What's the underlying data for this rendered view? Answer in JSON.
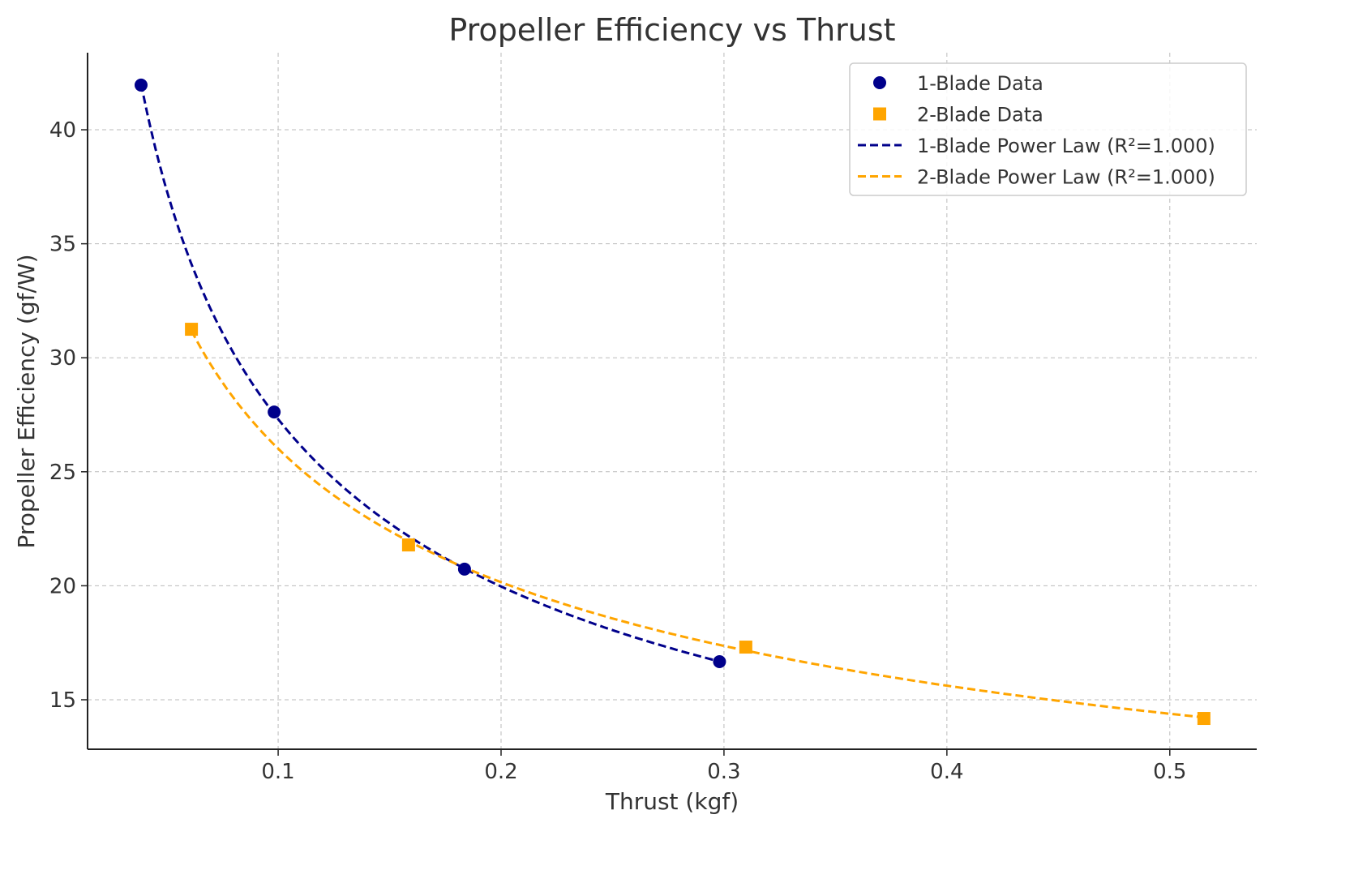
{
  "chart_data": {
    "type": "scatter",
    "title": "Propeller Efficiency vs Thrust",
    "xlabel": "Thrust (kgf)",
    "ylabel": "Propeller Efficiency (gf/W)",
    "xlim": [
      0.0145,
      0.539
    ],
    "ylim": [
      12.83,
      43.38
    ],
    "xticks": [
      0.1,
      0.2,
      0.3,
      0.4,
      0.5
    ],
    "xtick_labels": [
      "0.1",
      "0.2",
      "0.3",
      "0.4",
      "0.5"
    ],
    "yticks": [
      15,
      20,
      25,
      30,
      35,
      40
    ],
    "ytick_labels": [
      "15",
      "20",
      "25",
      "30",
      "35",
      "40"
    ],
    "grid": true,
    "legend_position": "top-right",
    "series": [
      {
        "name": "1-Blade Data",
        "kind": "scatter",
        "marker": "circle",
        "color": "#00008b",
        "x": [
          0.0385,
          0.0982,
          0.1836,
          0.298
        ],
        "y": [
          41.96,
          27.62,
          20.73,
          16.67
        ]
      },
      {
        "name": "2-Blade Data",
        "kind": "scatter",
        "marker": "square",
        "color": "#ffa500",
        "x": [
          0.0611,
          0.1585,
          0.3098,
          0.5153
        ],
        "y": [
          31.25,
          21.79,
          17.31,
          14.18
        ]
      },
      {
        "name": "1-Blade Power Law (R²=1.000)",
        "kind": "fit",
        "fit_of": 0,
        "model": "power",
        "line": "dashed",
        "color": "#00008b"
      },
      {
        "name": "2-Blade Power Law (R²=1.000)",
        "kind": "fit",
        "fit_of": 1,
        "model": "power",
        "line": "dashed",
        "color": "#ffa500"
      }
    ]
  }
}
